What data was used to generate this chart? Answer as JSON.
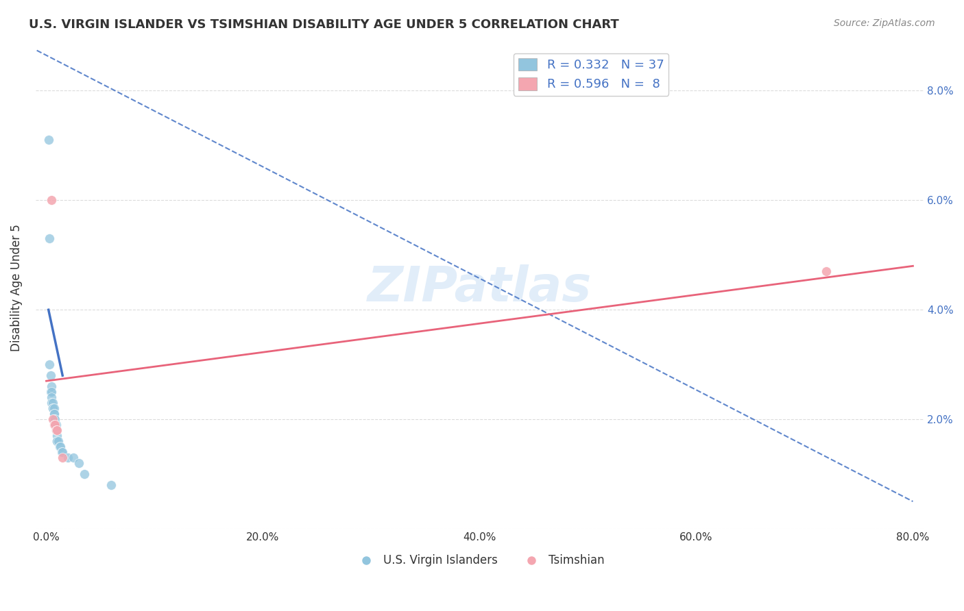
{
  "title": "U.S. VIRGIN ISLANDER VS TSIMSHIAN DISABILITY AGE UNDER 5 CORRELATION CHART",
  "source": "Source: ZipAtlas.com",
  "ylabel": "Disability Age Under 5",
  "xlabel": "",
  "xlim": [
    0.0,
    0.8
  ],
  "ylim": [
    0.0,
    0.088
  ],
  "xticks": [
    0.0,
    0.2,
    0.4,
    0.6,
    0.8
  ],
  "yticks": [
    0.0,
    0.02,
    0.04,
    0.06,
    0.08
  ],
  "ytick_labels": [
    "",
    "2.0%",
    "4.0%",
    "6.0%",
    "8.0%"
  ],
  "xtick_labels": [
    "0.0%",
    "20.0%",
    "40.0%",
    "60.0%",
    "80.0%"
  ],
  "R_blue": 0.332,
  "N_blue": 37,
  "R_pink": 0.596,
  "N_pink": 8,
  "blue_color": "#92C5DE",
  "pink_color": "#F4A6B0",
  "blue_line_color": "#4472C4",
  "pink_line_color": "#E8637A",
  "background_color": "#ffffff",
  "blue_scatter_x": [
    0.002,
    0.003,
    0.003,
    0.004,
    0.004,
    0.005,
    0.005,
    0.005,
    0.005,
    0.006,
    0.006,
    0.006,
    0.007,
    0.007,
    0.007,
    0.007,
    0.007,
    0.008,
    0.008,
    0.008,
    0.008,
    0.009,
    0.009,
    0.009,
    0.01,
    0.01,
    0.01,
    0.011,
    0.012,
    0.013,
    0.014,
    0.015,
    0.02,
    0.025,
    0.03,
    0.035,
    0.06
  ],
  "blue_scatter_y": [
    0.071,
    0.053,
    0.03,
    0.028,
    0.025,
    0.026,
    0.025,
    0.024,
    0.023,
    0.023,
    0.022,
    0.022,
    0.022,
    0.021,
    0.021,
    0.02,
    0.02,
    0.02,
    0.019,
    0.019,
    0.019,
    0.019,
    0.018,
    0.018,
    0.017,
    0.016,
    0.016,
    0.016,
    0.015,
    0.015,
    0.014,
    0.014,
    0.013,
    0.013,
    0.012,
    0.01,
    0.008
  ],
  "pink_scatter_x": [
    0.005,
    0.006,
    0.007,
    0.008,
    0.009,
    0.01,
    0.015,
    0.72
  ],
  "pink_scatter_y": [
    0.06,
    0.02,
    0.019,
    0.019,
    0.018,
    0.018,
    0.013,
    0.047
  ],
  "blue_trend_x": [
    -0.01,
    0.8
  ],
  "blue_trend_y_at_neg01": 0.085,
  "blue_trend_y_at_80": 0.005,
  "pink_trend_x_start": 0.0,
  "pink_trend_x_end": 0.8,
  "pink_trend_y_start": 0.027,
  "pink_trend_y_end": 0.048,
  "watermark": "ZIPatlas",
  "legend_blue_label_R": "R = 0.332",
  "legend_blue_label_N": "N = 37",
  "legend_pink_label_R": "R = 0.596",
  "legend_pink_label_N": "N =  8"
}
